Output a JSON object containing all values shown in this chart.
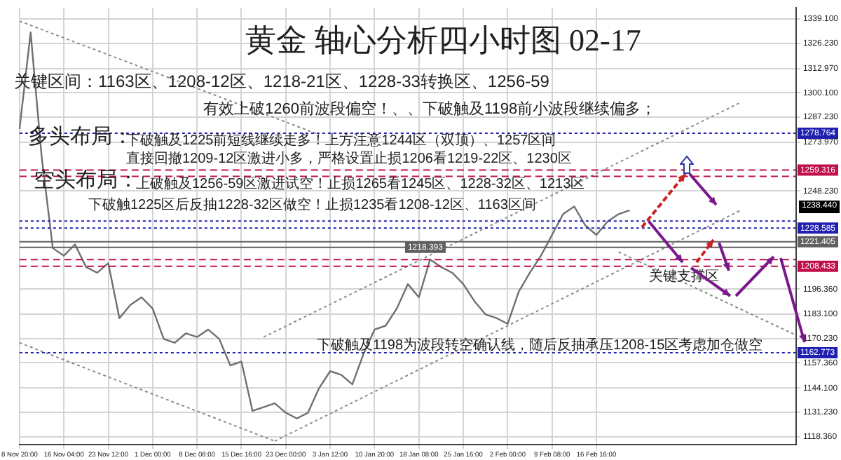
{
  "chart_data": {
    "type": "line",
    "title": "黄金 轴心分析四小时图 02-17",
    "categories": [
      "8 Nov 20:00",
      null,
      null,
      null,
      "16 Nov 04:00",
      null,
      null,
      null,
      "23 Nov 12:00",
      null,
      null,
      null,
      "1 Dec 00:00",
      null,
      null,
      null,
      "8 Dec 08:00",
      null,
      null,
      null,
      "15 Dec 16:00",
      null,
      null,
      null,
      "23 Dec 00:00",
      null,
      null,
      null,
      "3 Jan 12:00",
      null,
      null,
      null,
      "10 Jan 20:00",
      null,
      null,
      null,
      "18 Jan 08:00",
      null,
      null,
      null,
      "25 Jan 16:00",
      null,
      null,
      null,
      "2 Feb 00:00",
      null,
      null,
      null,
      "9 Feb 08:00",
      null,
      null,
      null,
      "16 Feb 16:00",
      null,
      null,
      null,
      null,
      null,
      null,
      null,
      null,
      null,
      null,
      null,
      null,
      null,
      null,
      null,
      null,
      null,
      null
    ],
    "series": [
      {
        "color": "#707070",
        "line_style": "solid",
        "values": [
          1281,
          1332,
          1266,
          1218,
          1214,
          1220,
          1208,
          1205,
          1210,
          1181,
          1188,
          1192,
          1186,
          1170,
          1168,
          1173,
          1171,
          1175,
          1170,
          1156,
          1158,
          1132,
          1134,
          1136,
          1131,
          1128,
          1131,
          1144,
          1153,
          1151,
          1146,
          1162,
          1175,
          1177,
          1186,
          1199,
          1192,
          1212,
          1208,
          1205,
          1199,
          1190,
          1183,
          1181,
          1178,
          1195,
          1205,
          1214,
          1225,
          1236,
          1240,
          1230,
          1225,
          1232,
          1236,
          1238,
          null,
          null,
          null,
          null,
          null,
          null,
          null,
          null,
          null,
          null,
          null,
          null,
          null,
          null,
          null
        ]
      },
      {
        "color": "#8c8c8c",
        "line_style": "dotted",
        "values": [
          1338,
          null,
          null,
          null,
          null,
          null,
          null,
          null,
          null,
          null,
          null,
          null,
          null,
          null,
          null,
          null,
          null,
          null,
          null,
          null,
          null,
          null,
          null,
          null,
          null,
          null,
          null,
          1278,
          null,
          null,
          null,
          null,
          null,
          null,
          null,
          null,
          null,
          null,
          null,
          null,
          null,
          null,
          null,
          null,
          null,
          null,
          null,
          null,
          null,
          null,
          null,
          null,
          null,
          null,
          null,
          null,
          null,
          null,
          null,
          null,
          null,
          null,
          null,
          null,
          null,
          null,
          null,
          null,
          null,
          null,
          null
        ]
      },
      {
        "color": "#8c8c8c",
        "line_style": "dotted",
        "values": [
          1168,
          null,
          null,
          null,
          null,
          null,
          null,
          null,
          null,
          null,
          null,
          null,
          null,
          null,
          null,
          null,
          null,
          null,
          null,
          null,
          null,
          null,
          null,
          1116,
          null,
          null,
          null,
          null,
          null,
          null,
          null,
          null,
          null,
          null,
          null,
          null,
          null,
          null,
          null,
          null,
          null,
          null,
          null,
          null,
          null,
          null,
          null,
          null,
          null,
          null,
          null,
          null,
          null,
          null,
          null,
          null,
          null,
          null,
          null,
          null,
          null,
          null,
          null,
          null,
          null,
          null,
          null,
          null,
          null,
          null,
          null
        ]
      },
      {
        "color": "#8c8c8c",
        "line_style": "dotted",
        "values": [
          null,
          null,
          null,
          null,
          null,
          null,
          null,
          null,
          null,
          null,
          null,
          null,
          null,
          null,
          null,
          null,
          null,
          null,
          null,
          null,
          null,
          null,
          null,
          1116,
          null,
          null,
          null,
          null,
          null,
          null,
          null,
          null,
          null,
          null,
          null,
          null,
          null,
          null,
          null,
          null,
          null,
          null,
          null,
          null,
          null,
          null,
          null,
          null,
          null,
          null,
          null,
          null,
          null,
          null,
          null,
          null,
          null,
          null,
          null,
          null,
          null,
          null,
          null,
          null,
          null,
          1238,
          null,
          null,
          null,
          null,
          null
        ]
      },
      {
        "color": "#8c8c8c",
        "line_style": "dotted",
        "values": [
          null,
          null,
          null,
          null,
          null,
          null,
          null,
          null,
          null,
          null,
          null,
          null,
          null,
          null,
          null,
          null,
          null,
          null,
          null,
          null,
          null,
          null,
          1171,
          null,
          null,
          null,
          null,
          null,
          null,
          null,
          null,
          null,
          null,
          null,
          null,
          null,
          null,
          null,
          null,
          null,
          null,
          null,
          null,
          null,
          null,
          null,
          null,
          null,
          null,
          null,
          null,
          null,
          null,
          null,
          null,
          null,
          null,
          null,
          null,
          null,
          null,
          null,
          null,
          null,
          null,
          1295,
          null,
          null,
          null,
          null,
          null
        ]
      },
      {
        "color": "#8c8c8c",
        "line_style": "dotted",
        "values": [
          null,
          null,
          null,
          null,
          null,
          null,
          null,
          null,
          null,
          null,
          null,
          null,
          null,
          null,
          null,
          null,
          null,
          null,
          null,
          null,
          null,
          null,
          null,
          null,
          null,
          null,
          null,
          null,
          null,
          null,
          null,
          null,
          null,
          null,
          null,
          null,
          null,
          null,
          null,
          null,
          null,
          null,
          null,
          null,
          null,
          null,
          null,
          null,
          null,
          null,
          null,
          null,
          null,
          null,
          1216,
          null,
          null,
          null,
          null,
          null,
          null,
          null,
          null,
          null,
          null,
          null,
          null,
          null,
          null,
          null,
          1172
        ]
      }
    ],
    "ylim": [
      1114,
      1345
    ],
    "yticks": [
      {
        "value": 1339.1,
        "label": "1339.100"
      },
      {
        "value": 1326.23,
        "label": "1326.230"
      },
      {
        "value": 1312.97,
        "label": "1312.970"
      },
      {
        "value": 1300.1,
        "label": "1300.100"
      },
      {
        "value": 1287.23,
        "label": "1287.230"
      },
      {
        "value": 1273.97,
        "label": "1273.970"
      },
      {
        "value": 1248.23,
        "label": "1248.230"
      },
      {
        "value": 1196.36,
        "label": "1196.360"
      },
      {
        "value": 1183.1,
        "label": "1183.100"
      },
      {
        "value": 1170.23,
        "label": "1170.230"
      },
      {
        "value": 1157.36,
        "label": "1157.360"
      },
      {
        "value": 1144.1,
        "label": "1144.100"
      },
      {
        "value": 1131.23,
        "label": "1131.230"
      },
      {
        "value": 1118.36,
        "label": "1118.360"
      }
    ],
    "ref_lines": [
      {
        "axis": "y",
        "value": 1278.764,
        "label": "1278.764",
        "color": "#2020b0",
        "line_style": "dotted"
      },
      {
        "axis": "y",
        "value": 1259.316,
        "label": "1259.316",
        "color": "#c0104a",
        "line_style": "dashed"
      },
      {
        "axis": "y",
        "value": 1255.9,
        "color": "#c0104a",
        "line_style": "dashed"
      },
      {
        "axis": "y",
        "value": 1232.3,
        "color": "#2020b0",
        "line_style": "dotted"
      },
      {
        "axis": "y",
        "value": 1228.585,
        "label": "1228.585",
        "color": "#2020b0",
        "line_style": "dotted"
      },
      {
        "axis": "y",
        "value": 1221.405,
        "label": "1221.405",
        "color": "#606060",
        "line_style": "solid"
      },
      {
        "axis": "y",
        "value": 1218.393,
        "label": "1218.393",
        "color": "#606060",
        "line_style": "solid"
      },
      {
        "axis": "y",
        "value": 1211.9,
        "color": "#c0104a",
        "line_style": "dashed"
      },
      {
        "axis": "y",
        "value": 1208.433,
        "label": "1208.433",
        "color": "#c0104a",
        "line_style": "dashed"
      },
      {
        "axis": "y",
        "value": 1162.773,
        "label": "1162.773",
        "color": "#2020b0",
        "line_style": "dotted"
      }
    ],
    "annotations": [
      "关键区间：1163区、1208-12区、1218-21区、1228-33转换区、1256-59",
      "有效上破1260前波段偏空！、、下破触及1198前小波段继续偏多；",
      "多头布局：",
      "下破触及1225前短线继续走多！上方注意1244区（双顶）、1257区间",
      "直接回撤1209-12区激进小多，严格设置止损1206看1219-22区、1230区",
      "空头布局：",
      "上破触及1256-59区激进试空！止损1265看1245区、1228-32区、1213区",
      "下破触1225区后反抽1228-32区做空！止损1235看1208-12区、1163区间",
      "关键支撑区",
      "下破触及1198为波段转空确认线，随后反抽承压1208-15区考虑加仓做空",
      "1238.440"
    ],
    "grid": true,
    "legend": false,
    "marker": "none"
  }
}
